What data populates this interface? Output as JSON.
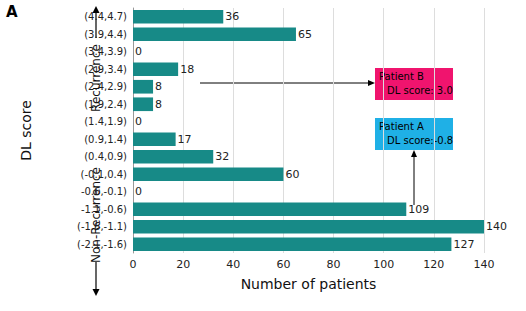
{
  "chart_data": {
    "type": "bar",
    "orientation": "horizontal",
    "panel_label": "A",
    "categories": [
      "(4.4,4.7)",
      "(3.9,4.4)",
      "(3.4,3.9)",
      "(2.9,3.4)",
      "(2.4,2.9)",
      "(1.9,2.4)",
      "(1.4,1.9)",
      "(0.9,1.4)",
      "(0.4,0.9)",
      "(-0.1,0.4)",
      "-0.6,-0.1)",
      "-1.1,-0.6)",
      "(-1.6,-1.1)",
      "(-2.1,-1.6)"
    ],
    "values": [
      36,
      65,
      0,
      18,
      8,
      8,
      0,
      17,
      32,
      60,
      0,
      109,
      140,
      127
    ],
    "color": "#178a87",
    "xlabel": "Number of patients",
    "ylabel": "DL score",
    "xlim": [
      0,
      140
    ],
    "xticks": [
      0,
      20,
      40,
      60,
      80,
      100,
      120,
      140
    ],
    "grid": true,
    "data_labels": true,
    "group_labels": [
      "Recurrence",
      "Non-Recurrence"
    ],
    "annotations": [
      {
        "title": "Patient B",
        "text": "DL score: 3.0",
        "color": "#f0146e"
      },
      {
        "title": "Patient A",
        "text": "DL score:-0.8",
        "color": "#1fb0e6"
      }
    ]
  }
}
